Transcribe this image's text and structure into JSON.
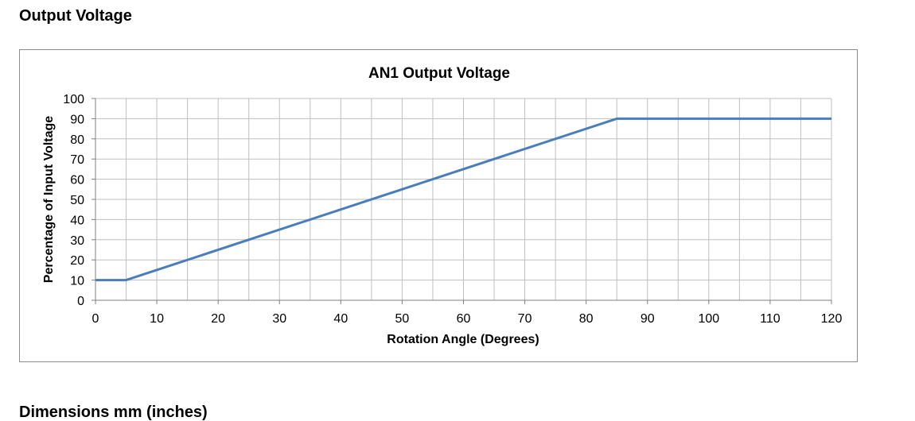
{
  "page": {
    "heading": "Output Voltage",
    "next_heading": "Dimensions mm (inches)"
  },
  "chart_data": {
    "type": "line",
    "title": "AN1 Output Voltage",
    "xlabel": "Rotation Angle (Degrees)",
    "ylabel": "Percentage of Input Voltage",
    "xlim": [
      0,
      120
    ],
    "ylim": [
      0,
      100
    ],
    "x_ticks": [
      0,
      10,
      20,
      30,
      40,
      50,
      60,
      70,
      80,
      90,
      100,
      110,
      120
    ],
    "y_ticks": [
      0,
      10,
      20,
      30,
      40,
      50,
      60,
      70,
      80,
      90,
      100
    ],
    "x_minor_step": 5,
    "grid": true,
    "series": [
      {
        "color": "#4a7ebb",
        "x": [
          0,
          5,
          85,
          120
        ],
        "y": [
          10,
          10,
          90,
          90
        ]
      }
    ]
  }
}
